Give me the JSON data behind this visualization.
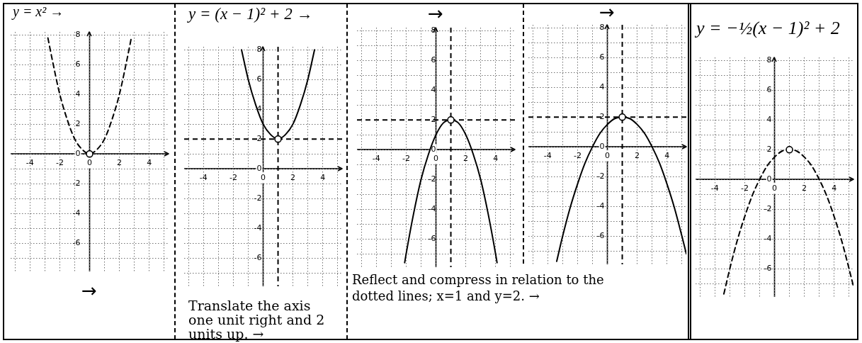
{
  "chart_data": [
    {
      "type": "line",
      "title": "y = x² →",
      "x": [
        -2.8,
        -2.5,
        -2,
        -1.5,
        -1,
        -0.5,
        0,
        0.5,
        1,
        1.5,
        2,
        2.5,
        2.8
      ],
      "line_style": "dashed",
      "series": [
        {
          "color": "#000000",
          "values": [
            7.8,
            6.3,
            4,
            2.3,
            1,
            0.3,
            0,
            0.3,
            1,
            2.3,
            4,
            6.3,
            7.8
          ]
        },
        {
          "type": "scatter",
          "values": [
            null,
            null,
            null,
            null,
            null,
            null,
            0,
            null,
            null,
            null,
            null,
            null,
            null
          ],
          "color": "#000000",
          "marker": "circle"
        }
      ],
      "xlim": [
        -5.3,
        5.3
      ],
      "ylim": [
        -7.9,
        8.2
      ],
      "xticks": [
        {
          "value": -5,
          "label": null
        },
        -4,
        {
          "value": -3,
          "label": null
        },
        -2,
        {
          "value": -1,
          "label": null
        },
        0,
        {
          "value": 1,
          "label": null
        },
        2,
        {
          "value": 3,
          "label": null
        },
        4,
        {
          "value": 5,
          "label": null
        }
      ],
      "yticks": [
        {
          "value": -7,
          "label": null
        },
        -6,
        {
          "value": -5,
          "label": null
        },
        -4,
        {
          "value": -3,
          "label": null
        },
        -2,
        {
          "value": -1,
          "label": null
        },
        0,
        {
          "value": 1,
          "label": null
        },
        2,
        {
          "value": 3,
          "label": null
        },
        4,
        {
          "value": 5,
          "label": null
        },
        6,
        {
          "value": 7,
          "label": null
        },
        8
      ],
      "grid": true,
      "annotations": [
        "→"
      ]
    },
    {
      "type": "line",
      "title": "y = (x − 1)² + 2 →",
      "x": [
        -1.45,
        -1,
        -0.5,
        0,
        0.5,
        1,
        1.5,
        2,
        2.5,
        3,
        3.45
      ],
      "series": [
        {
          "color": "#000000",
          "values": [
            8,
            6,
            4.3,
            3,
            2.3,
            2,
            2.3,
            3,
            4.3,
            6,
            8
          ]
        },
        {
          "type": "scatter",
          "values": [
            null,
            null,
            null,
            null,
            null,
            2,
            null,
            null,
            null,
            null,
            null
          ],
          "color": "#000000",
          "marker": "circle"
        }
      ],
      "xlim": [
        -5.3,
        5.3
      ],
      "ylim": [
        -7.9,
        8.2
      ],
      "xticks": [
        {
          "value": -5,
          "label": null
        },
        -4,
        {
          "value": -3,
          "label": null
        },
        -2,
        {
          "value": -1,
          "label": null
        },
        0,
        2,
        {
          "value": 3,
          "label": null
        },
        4,
        {
          "value": 5,
          "label": null
        }
      ],
      "yticks": [
        {
          "value": -7,
          "label": null
        },
        -6,
        {
          "value": -5,
          "label": null
        },
        -4,
        {
          "value": -3,
          "label": null
        },
        -2,
        {
          "value": -1,
          "label": null
        },
        0,
        {
          "value": 1,
          "label": null
        },
        2,
        {
          "value": 3,
          "label": null
        },
        4,
        {
          "value": 5,
          "label": null
        },
        6,
        {
          "value": 7,
          "label": null
        },
        8
      ],
      "grid": true,
      "ref_lines": [
        {
          "axis": "x",
          "value": 1,
          "line_style": "dashed"
        },
        {
          "axis": "y",
          "value": 2,
          "line_style": "dashed"
        }
      ],
      "annotations": [
        "Translate the axis one unit right and 2 units up. →"
      ]
    },
    {
      "type": "line",
      "x": [
        -2.1,
        -2,
        -1.5,
        -1,
        -0.5,
        0,
        0.5,
        1,
        1.5,
        2,
        2.5,
        3,
        3.5,
        4,
        4.1
      ],
      "series": [
        {
          "color": "#000000",
          "values": [
            -7.6,
            -7,
            -4.3,
            -2,
            -0.3,
            1,
            1.8,
            2,
            1.8,
            1,
            -0.3,
            -2,
            -4.3,
            -7,
            -7.6
          ]
        },
        {
          "type": "scatter",
          "values": [
            null,
            null,
            null,
            null,
            null,
            null,
            null,
            2,
            null,
            null,
            null,
            null,
            null,
            null,
            null
          ],
          "color": "#000000",
          "marker": "circle"
        }
      ],
      "xlim": [
        -5.3,
        5.3
      ],
      "ylim": [
        -7.9,
        8.2
      ],
      "xticks": [
        {
          "value": -5,
          "label": null
        },
        -4,
        {
          "value": -3,
          "label": null
        },
        -2,
        {
          "value": -1,
          "label": null
        },
        0,
        2,
        {
          "value": 3,
          "label": null
        },
        4,
        {
          "value": 5,
          "label": null
        }
      ],
      "yticks": [
        {
          "value": -7,
          "label": null
        },
        -6,
        {
          "value": -5,
          "label": null
        },
        -4,
        {
          "value": -3,
          "label": null
        },
        -2,
        {
          "value": -1,
          "label": null
        },
        0,
        {
          "value": 1,
          "label": null
        },
        2,
        {
          "value": 3,
          "label": null
        },
        4,
        {
          "value": 5,
          "label": null
        },
        6,
        {
          "value": 7,
          "label": null
        },
        8
      ],
      "grid": true,
      "ref_lines": [
        {
          "axis": "x",
          "value": 1,
          "line_style": "dashed"
        },
        {
          "axis": "y",
          "value": 2,
          "line_style": "dashed"
        }
      ],
      "annotations": [
        "→",
        "Reflect and compress in relation to the dotted lines; x=1 and y=2. →"
      ]
    },
    {
      "type": "line",
      "x": [
        -3.4,
        -3,
        -2.5,
        -2,
        -1.5,
        -1,
        -0.5,
        0,
        0.5,
        1,
        1.5,
        2,
        2.5,
        3,
        3.5,
        4,
        4.5,
        5,
        5.3
      ],
      "series": [
        {
          "color": "#000000",
          "values": [
            -7.7,
            -6,
            -4.1,
            -2.5,
            -1.1,
            0,
            0.9,
            1.5,
            1.9,
            2,
            1.9,
            1.5,
            0.9,
            0,
            -1.1,
            -2.5,
            -4.1,
            -6,
            -7.2
          ]
        },
        {
          "type": "scatter",
          "values": [
            null,
            null,
            null,
            null,
            null,
            null,
            null,
            null,
            null,
            2,
            null,
            null,
            null,
            null,
            null,
            null,
            null,
            null,
            null
          ],
          "color": "#000000",
          "marker": "circle"
        }
      ],
      "xlim": [
        -5.3,
        5.3
      ],
      "ylim": [
        -7.9,
        8.2
      ],
      "xticks": [
        {
          "value": -5,
          "label": null
        },
        -4,
        {
          "value": -3,
          "label": null
        },
        -2,
        {
          "value": -1,
          "label": null
        },
        0,
        2,
        {
          "value": 3,
          "label": null
        },
        4,
        {
          "value": 5,
          "label": null
        }
      ],
      "yticks": [
        {
          "value": -7,
          "label": null
        },
        -6,
        {
          "value": -5,
          "label": null
        },
        -4,
        {
          "value": -3,
          "label": null
        },
        -2,
        {
          "value": -1,
          "label": null
        },
        0,
        {
          "value": 1,
          "label": null
        },
        2,
        {
          "value": 3,
          "label": null
        },
        4,
        {
          "value": 5,
          "label": null
        },
        6,
        {
          "value": 7,
          "label": null
        },
        8
      ],
      "grid": true,
      "ref_lines": [
        {
          "axis": "x",
          "value": 1,
          "line_style": "dashed"
        },
        {
          "axis": "y",
          "value": 2,
          "line_style": "dashed"
        }
      ],
      "annotations": [
        "→"
      ]
    },
    {
      "type": "line",
      "title": "y = −½(x − 1)² + 2",
      "x": [
        -3.4,
        -3,
        -2.5,
        -2,
        -1.5,
        -1,
        -0.5,
        0,
        0.5,
        1,
        1.5,
        2,
        2.5,
        3,
        3.5,
        4,
        4.5,
        5,
        5.3
      ],
      "line_style": "dashed",
      "series": [
        {
          "color": "#000000",
          "values": [
            -7.7,
            -6,
            -4.1,
            -2.5,
            -1.1,
            0,
            0.9,
            1.5,
            1.9,
            2,
            1.9,
            1.5,
            0.9,
            0,
            -1.1,
            -2.5,
            -4.1,
            -6,
            -7.2
          ]
        },
        {
          "type": "scatter",
          "values": [
            null,
            null,
            null,
            null,
            null,
            null,
            null,
            null,
            null,
            2,
            null,
            null,
            null,
            null,
            null,
            null,
            null,
            null,
            null
          ],
          "color": "#000000",
          "marker": "circle"
        }
      ],
      "xlim": [
        -5.3,
        5.3
      ],
      "ylim": [
        -7.9,
        8.2
      ],
      "xticks": [
        {
          "value": -5,
          "label": null
        },
        -4,
        {
          "value": -3,
          "label": null
        },
        -2,
        {
          "value": -1,
          "label": null
        },
        0,
        {
          "value": 1,
          "label": null
        },
        2,
        {
          "value": 3,
          "label": null
        },
        4,
        {
          "value": 5,
          "label": null
        }
      ],
      "yticks": [
        {
          "value": -7,
          "label": null
        },
        -6,
        {
          "value": -5,
          "label": null
        },
        -4,
        {
          "value": -3,
          "label": null
        },
        -2,
        {
          "value": -1,
          "label": null
        },
        0,
        {
          "value": 1,
          "label": null
        },
        2,
        {
          "value": 3,
          "label": null
        },
        4,
        {
          "value": 5,
          "label": null
        },
        6,
        {
          "value": 7,
          "label": null
        },
        8
      ],
      "grid": true
    }
  ]
}
